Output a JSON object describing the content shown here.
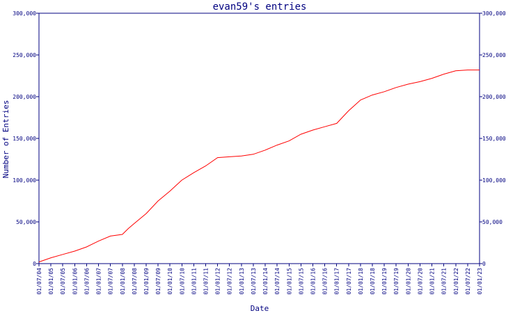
{
  "chart_data": {
    "type": "line",
    "title": "evan59's entries",
    "xlabel": "Date",
    "ylabel": "Number of Entries",
    "ylim": [
      0,
      300000
    ],
    "yticks": [
      0,
      50000,
      100000,
      150000,
      200000,
      250000,
      300000
    ],
    "ytick_labels": [
      "0",
      "50,000",
      "100,000",
      "150,000",
      "200,000",
      "250,000",
      "300,000"
    ],
    "xlim": [
      "2004-07-01",
      "2023-01-01"
    ],
    "xtick_labels": [
      "01/07/04",
      "01/01/05",
      "01/07/05",
      "01/01/06",
      "01/07/06",
      "01/01/07",
      "01/07/07",
      "01/01/08",
      "01/07/08",
      "01/01/09",
      "01/07/09",
      "01/01/10",
      "01/07/10",
      "01/01/11",
      "01/07/11",
      "01/01/12",
      "01/07/12",
      "01/01/13",
      "01/07/13",
      "01/01/14",
      "01/07/14",
      "01/01/15",
      "01/07/15",
      "01/01/16",
      "01/07/16",
      "01/01/17",
      "01/07/17",
      "01/01/18",
      "01/07/18",
      "01/01/19",
      "01/07/19",
      "01/01/20",
      "01/07/20",
      "01/01/21",
      "01/07/21",
      "01/01/22",
      "01/07/22",
      "01/01/23"
    ],
    "grid": false,
    "secondary_y_axis": true,
    "colors": {
      "axis": "#000080",
      "series": "#ff0000"
    },
    "series": [
      {
        "x": [
          "2004-07-01",
          "2005-01-01",
          "2005-07-01",
          "2006-01-01",
          "2006-07-01",
          "2007-01-01",
          "2007-07-01",
          "2008-01-01",
          "2008-04-01",
          "2008-07-01",
          "2009-01-01",
          "2009-07-01",
          "2010-01-01",
          "2010-07-01",
          "2011-01-01",
          "2011-07-01",
          "2012-01-01",
          "2012-07-01",
          "2013-01-01",
          "2013-07-01",
          "2014-01-01",
          "2014-07-01",
          "2015-01-01",
          "2015-07-01",
          "2016-01-01",
          "2016-07-01",
          "2017-01-01",
          "2017-07-01",
          "2018-01-01",
          "2018-07-01",
          "2019-01-01",
          "2019-07-01",
          "2020-01-01",
          "2020-07-01",
          "2021-01-01",
          "2021-07-01",
          "2022-01-01",
          "2022-07-01",
          "2023-01-01"
        ],
        "values": [
          2000,
          7000,
          11000,
          15000,
          20000,
          27000,
          33000,
          35000,
          42000,
          48000,
          60000,
          75000,
          87000,
          100000,
          109000,
          117000,
          127000,
          128000,
          129000,
          131000,
          136000,
          142000,
          147000,
          155000,
          160000,
          164000,
          168000,
          183000,
          196000,
          202000,
          206000,
          211000,
          215000,
          218000,
          222000,
          227000,
          231000,
          232000,
          232000
        ]
      }
    ]
  }
}
